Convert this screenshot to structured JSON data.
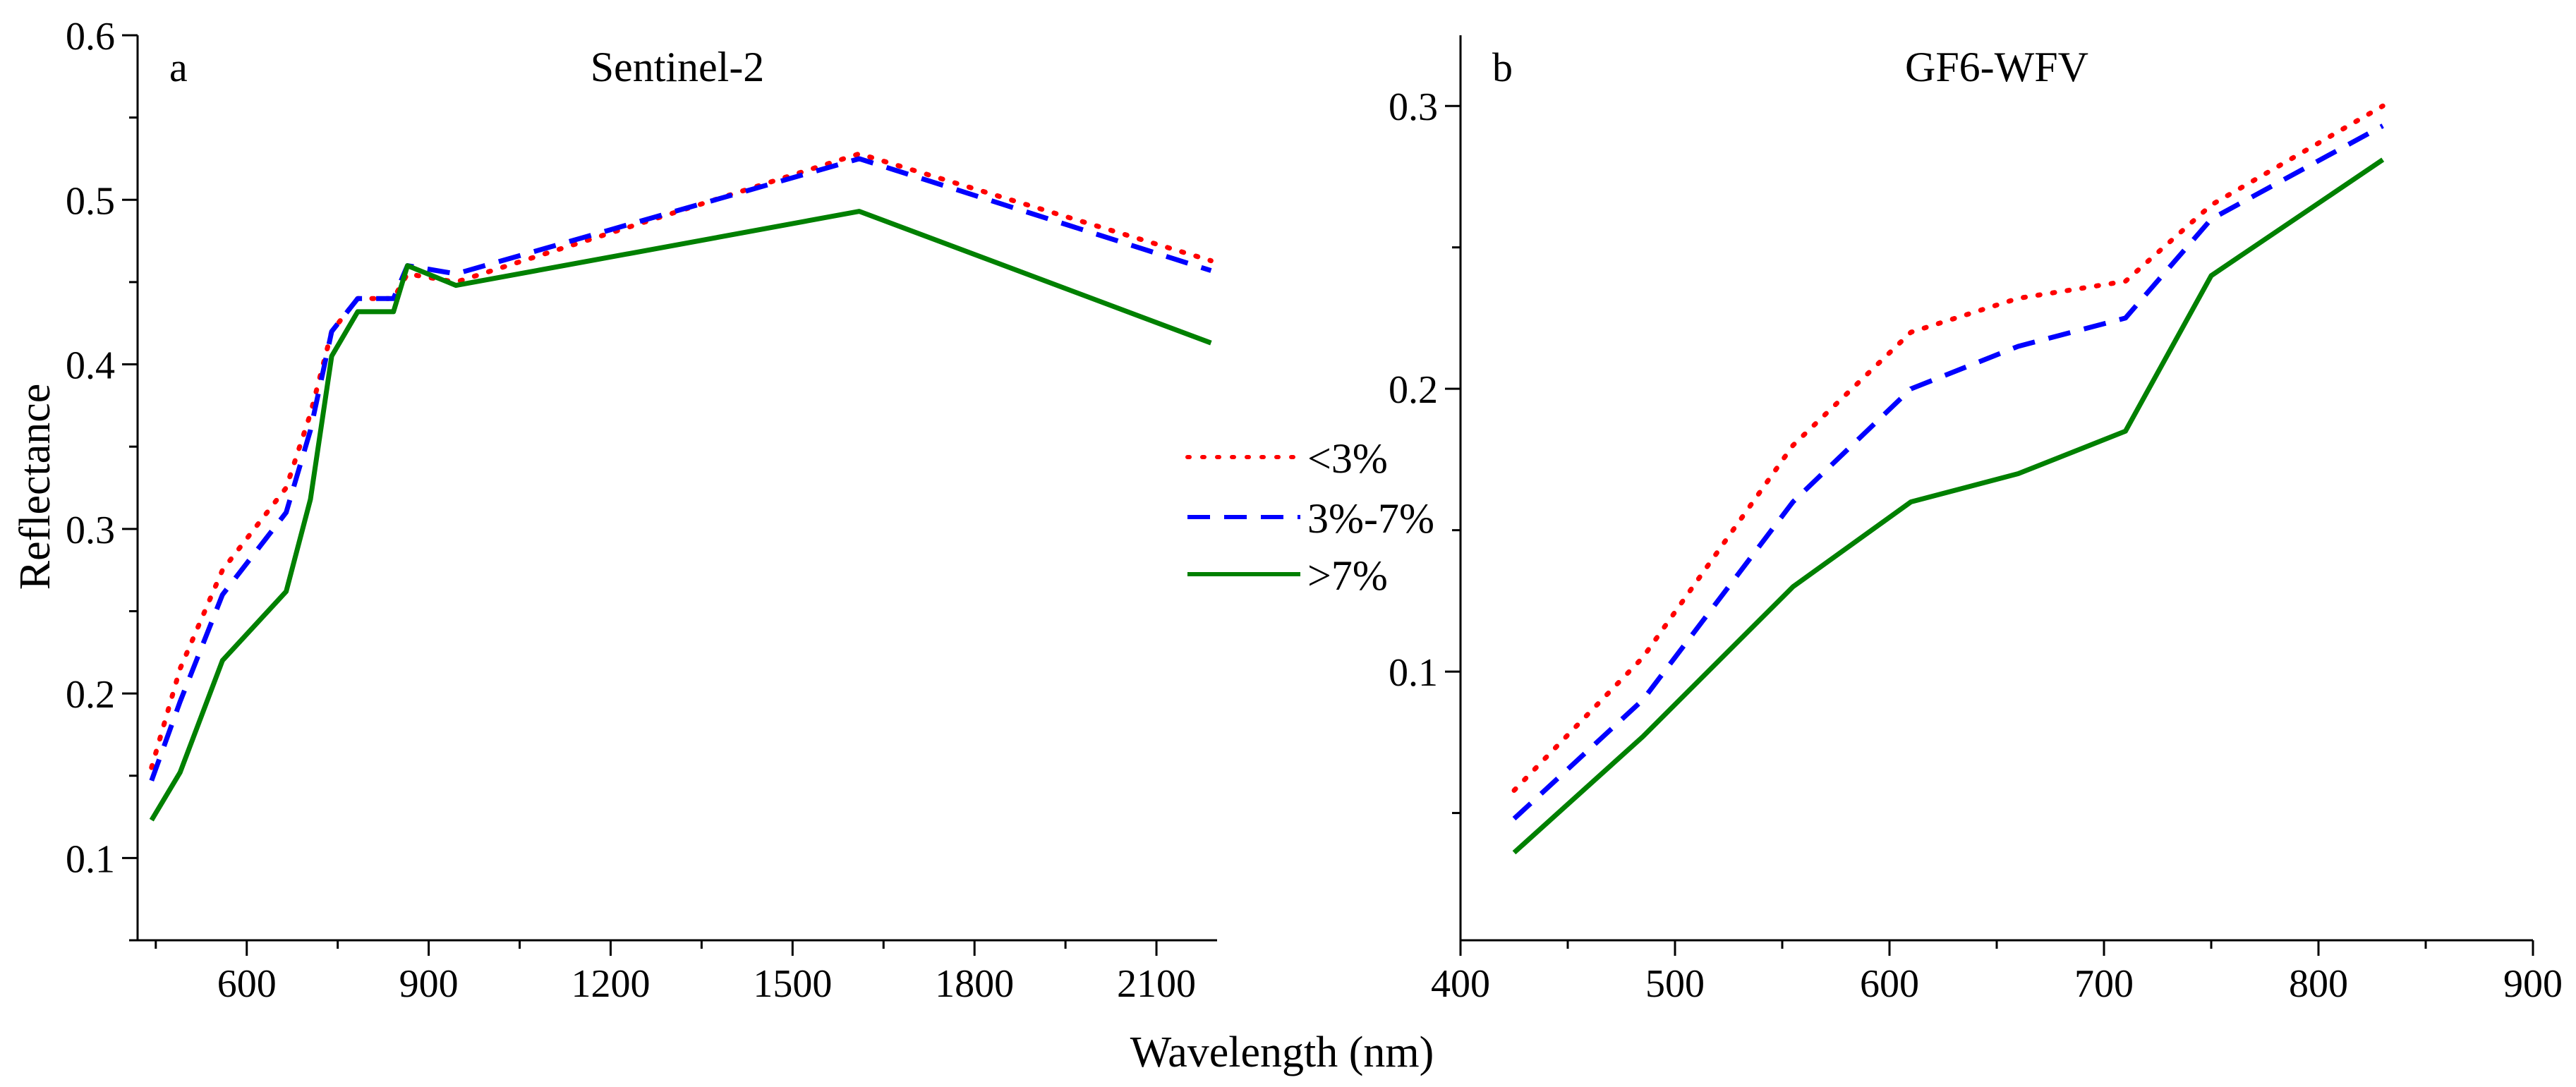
{
  "figure": {
    "shared_xlabel": "Wavelength (nm)",
    "shared_ylabel": "Reflectance"
  },
  "legend": [
    {
      "label": "<3%",
      "color": "#ff0000",
      "style": "dotted"
    },
    {
      "label": "3%-7%",
      "color": "#0000ff",
      "style": "dashed"
    },
    {
      "label": ">7%",
      "color": "#008000",
      "style": "solid"
    }
  ],
  "chart_data": [
    {
      "type": "line",
      "panel_letter": "a",
      "title": "Sentinel-2",
      "xlabel": "Wavelength (nm)",
      "ylabel": "Reflectance",
      "xlim": [
        420,
        2200
      ],
      "ylim": [
        0.05,
        0.6
      ],
      "xticks": [
        600,
        900,
        1200,
        1500,
        1800,
        2100
      ],
      "yticks": [
        0.1,
        0.2,
        0.3,
        0.4,
        0.5,
        0.6
      ],
      "x": [
        443,
        490,
        560,
        665,
        705,
        740,
        783,
        842,
        865,
        945,
        1610,
        2190
      ],
      "series": [
        {
          "name": "<3%",
          "values": [
            0.155,
            0.215,
            0.275,
            0.325,
            0.37,
            0.42,
            0.44,
            0.44,
            0.455,
            0.45,
            0.528,
            0.463
          ]
        },
        {
          "name": "3%-7%",
          "values": [
            0.147,
            0.195,
            0.26,
            0.31,
            0.36,
            0.42,
            0.44,
            0.44,
            0.46,
            0.455,
            0.525,
            0.457
          ]
        },
        {
          "name": ">7%",
          "values": [
            0.123,
            0.152,
            0.22,
            0.262,
            0.318,
            0.405,
            0.432,
            0.432,
            0.46,
            0.448,
            0.493,
            0.413
          ]
        }
      ]
    },
    {
      "type": "line",
      "panel_letter": "b",
      "title": "GF6-WFV",
      "xlabel": "Wavelength (nm)",
      "ylabel": "",
      "xlim": [
        400,
        900
      ],
      "ylim": [
        0.005,
        0.325
      ],
      "xticks": [
        400,
        500,
        600,
        700,
        800,
        900
      ],
      "yticks": [
        0.1,
        0.2,
        0.3
      ],
      "x": [
        425,
        485,
        555,
        610,
        660,
        710,
        750,
        830
      ],
      "series": [
        {
          "name": "<3%",
          "values": [
            0.058,
            0.105,
            0.18,
            0.22,
            0.232,
            0.238,
            0.265,
            0.3
          ]
        },
        {
          "name": "3%-7%",
          "values": [
            0.048,
            0.09,
            0.16,
            0.2,
            0.215,
            0.225,
            0.26,
            0.293
          ]
        },
        {
          "name": ">7%",
          "values": [
            0.036,
            0.077,
            0.13,
            0.16,
            0.17,
            0.185,
            0.24,
            0.281
          ]
        }
      ]
    }
  ]
}
